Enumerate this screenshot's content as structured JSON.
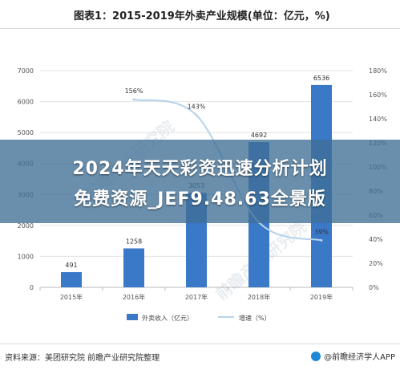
{
  "header": {
    "title": "图表1：2015-2019年外卖产业规模(单位：亿元，%)"
  },
  "overlay": {
    "line1": "2024年天天彩资迅速分析计划",
    "line2": "免费资源_JEF9.48.63全景版"
  },
  "watermark": "前瞻产业研究院",
  "footer": {
    "source": "资料来源：美团研究院 前瞻产业研究院整理",
    "brand": "@前瞻经济学人APP"
  },
  "chart_data": {
    "type": "bar",
    "categories": [
      "2015年",
      "2016年",
      "2017年",
      "2018年",
      "2019年"
    ],
    "series": [
      {
        "name": "外卖收入（亿元）",
        "kind": "bar",
        "axis": "left",
        "color": "#3a78c8",
        "values": [
          491,
          1258,
          3053,
          4692,
          6536
        ]
      },
      {
        "name": "增速（%）",
        "kind": "line",
        "axis": "right",
        "color": "#b6d3ea",
        "values": [
          null,
          156,
          143,
          54,
          39
        ]
      }
    ],
    "left_axis": {
      "min": 0,
      "max": 7000,
      "ticks": [
        0,
        1000,
        2000,
        3000,
        4000,
        5000,
        6000,
        7000
      ]
    },
    "right_axis": {
      "min": 0,
      "max": 180,
      "ticks": [
        "0%",
        "20%",
        "40%",
        "60%",
        "80%",
        "100%",
        "120%",
        "140%",
        "160%",
        "180%"
      ]
    },
    "bar_labels": [
      "491",
      "1258",
      "3053",
      "4692",
      "6536"
    ],
    "line_labels": [
      "",
      "156%",
      "143%",
      "",
      "39%"
    ],
    "grid": true,
    "legend_position": "bottom"
  }
}
